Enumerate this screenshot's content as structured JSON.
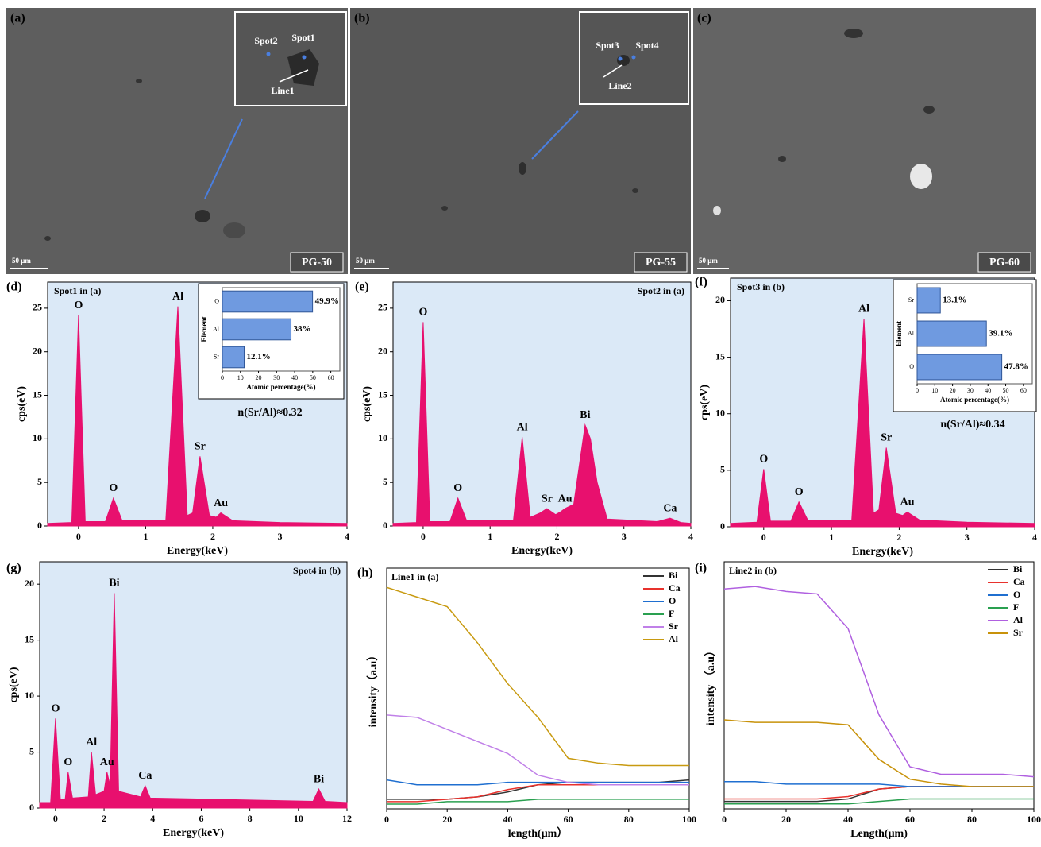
{
  "images": [
    {
      "label": "(a)",
      "scale": "50 μm",
      "sample": "PG-50",
      "inset_labels": [
        "Spot2",
        "Spot1",
        "Line1"
      ]
    },
    {
      "label": "(b)",
      "scale": "50 μm",
      "sample": "PG-55",
      "inset_labels": [
        "Spot3",
        "Spot4",
        "Line2"
      ]
    },
    {
      "label": "(c)",
      "scale": "50 μm",
      "sample": "PG-60"
    }
  ],
  "chart_data": [
    {
      "type": "area",
      "panel": "(d)",
      "subtitle": "Spot1 in (a)",
      "xlabel": "Energy(keV)",
      "ylabel": "cps(eV)",
      "color": "#e8106e",
      "x": [
        -0.46,
        -0.1,
        0,
        0.1,
        0.4,
        0.52,
        0.65,
        1.3,
        1.48,
        1.62,
        1.7,
        1.81,
        1.95,
        2.05,
        2.12,
        2.3,
        3,
        4
      ],
      "values": [
        0.3,
        0.4,
        24.2,
        0.5,
        0.5,
        3.2,
        0.6,
        0.6,
        25.2,
        1.2,
        1.5,
        8,
        1.2,
        1,
        1.5,
        0.6,
        0.4,
        0.3
      ],
      "xlim": [
        -0.46,
        4
      ],
      "xticks": [
        0,
        1,
        2,
        3,
        4
      ],
      "ylim": [
        0,
        28
      ],
      "yticks": [
        0,
        5,
        10,
        15,
        20,
        25
      ],
      "annotations": [
        {
          "text": "O",
          "x": 0
        },
        {
          "text": "O",
          "x": 0.52
        },
        {
          "text": "Al",
          "x": 1.48
        },
        {
          "text": "Sr",
          "x": 1.81
        },
        {
          "text": "Au",
          "x": 2.12
        }
      ],
      "note": "n(Sr/Al)≈0.32",
      "inset": {
        "type": "bar",
        "categories": [
          "O",
          "Al",
          "Sr"
        ],
        "values": [
          49.9,
          38,
          12.1
        ],
        "value_labels": [
          "49.9%",
          "38%",
          "12.1%"
        ],
        "xlim": [
          0,
          65
        ],
        "xticks": [
          0,
          10,
          20,
          30,
          40,
          50,
          60
        ],
        "xlabel": "Atomic percentage(%)",
        "ylabel": "Element",
        "color": "#6f9ae0"
      }
    },
    {
      "type": "area",
      "panel": "(e)",
      "subtitle": "Spot2 in (a)",
      "xlabel": "Energy(keV)",
      "ylabel": "cps(eV)",
      "color": "#e8106e",
      "x": [
        -0.45,
        -0.1,
        0,
        0.1,
        0.4,
        0.52,
        0.65,
        1.35,
        1.48,
        1.6,
        1.75,
        1.85,
        1.98,
        2.05,
        2.12,
        2.25,
        2.42,
        2.5,
        2.6,
        2.75,
        3.5,
        3.69,
        3.85,
        4
      ],
      "values": [
        0.3,
        0.4,
        23.4,
        0.5,
        0.5,
        3.2,
        0.6,
        0.7,
        10.2,
        1,
        1.5,
        2,
        1.3,
        1.6,
        2,
        2.5,
        11.6,
        10,
        5,
        0.8,
        0.5,
        0.9,
        0.4,
        0.3
      ],
      "xlim": [
        -0.45,
        4
      ],
      "xticks": [
        0,
        1,
        2,
        3,
        4
      ],
      "ylim": [
        0,
        28
      ],
      "yticks": [
        0,
        5,
        10,
        15,
        20,
        25
      ],
      "annotations": [
        {
          "text": "O",
          "x": 0
        },
        {
          "text": "O",
          "x": 0.52
        },
        {
          "text": "Al",
          "x": 1.48
        },
        {
          "text": "Sr",
          "x": 1.85
        },
        {
          "text": "Au",
          "x": 2.12
        },
        {
          "text": "Bi",
          "x": 2.42
        },
        {
          "text": "Ca",
          "x": 3.69
        }
      ]
    },
    {
      "type": "area",
      "panel": "(f)",
      "subtitle": "Spot3 in (b)",
      "xlabel": "Energy(keV)",
      "ylabel": "cps(eV)",
      "color": "#e8106e",
      "x": [
        -0.49,
        -0.1,
        0,
        0.1,
        0.4,
        0.52,
        0.65,
        1.3,
        1.48,
        1.62,
        1.7,
        1.81,
        1.95,
        2.05,
        2.12,
        2.3,
        3,
        4
      ],
      "values": [
        0.3,
        0.4,
        5.1,
        0.5,
        0.5,
        2.2,
        0.6,
        0.6,
        18.4,
        1.2,
        1.5,
        7,
        1.2,
        1,
        1.3,
        0.6,
        0.4,
        0.3
      ],
      "xlim": [
        -0.49,
        4
      ],
      "xticks": [
        0,
        1,
        2,
        3,
        4
      ],
      "ylim": [
        0,
        22
      ],
      "yticks": [
        0,
        5,
        10,
        15,
        20
      ],
      "annotations": [
        {
          "text": "O",
          "x": 0
        },
        {
          "text": "O",
          "x": 0.52
        },
        {
          "text": "Al",
          "x": 1.48
        },
        {
          "text": "Sr",
          "x": 1.81
        },
        {
          "text": "Au",
          "x": 2.12
        }
      ],
      "note": "n(Sr/Al)≈0.34",
      "inset": {
        "type": "bar",
        "categories": [
          "Sr",
          "Al",
          "O"
        ],
        "values": [
          13.1,
          39.1,
          47.8
        ],
        "value_labels": [
          "13.1%",
          "39.1%",
          "47.8%"
        ],
        "xlim": [
          0,
          65
        ],
        "xticks": [
          0,
          10,
          20,
          30,
          40,
          50,
          60
        ],
        "xlabel": "Atomic percentage(%)",
        "ylabel": "Element",
        "color": "#6f9ae0"
      }
    },
    {
      "type": "area",
      "panel": "(g)",
      "subtitle": "Spot4 in (b)",
      "xlabel": "Energy(keV)",
      "ylabel": "cps(eV)",
      "color": "#e8106e",
      "x": [
        -0.65,
        -0.2,
        0,
        0.2,
        0.4,
        0.52,
        0.7,
        1.35,
        1.48,
        1.65,
        2,
        2.12,
        2.25,
        2.42,
        2.6,
        3.5,
        3.69,
        3.9,
        10.6,
        10.84,
        11.1,
        12
      ],
      "values": [
        0.5,
        0.5,
        8,
        0.8,
        0.8,
        3.2,
        0.9,
        1,
        5,
        1.2,
        1.5,
        3.2,
        2,
        19.2,
        1.5,
        1,
        2,
        0.9,
        0.6,
        1.7,
        0.6,
        0.5
      ],
      "xlim": [
        -0.65,
        12
      ],
      "xticks": [
        0,
        2,
        4,
        6,
        8,
        10,
        12
      ],
      "ylim": [
        0,
        22
      ],
      "yticks": [
        0,
        5,
        10,
        15,
        20
      ],
      "annotations": [
        {
          "text": "O",
          "x": 0
        },
        {
          "text": "O",
          "x": 0.52
        },
        {
          "text": "Al",
          "x": 1.48
        },
        {
          "text": "Au",
          "x": 2.12
        },
        {
          "text": "Bi",
          "x": 2.42
        },
        {
          "text": "Ca",
          "x": 3.69
        },
        {
          "text": "Bi",
          "x": 10.84
        }
      ]
    },
    {
      "type": "line",
      "panel": "(h)",
      "subtitle": "Line1 in (a)",
      "xlabel": "length(μm）",
      "ylabel": "intensity（a.u）",
      "legend": "upper right",
      "x": [
        0,
        10,
        20,
        30,
        40,
        50,
        60,
        70,
        80,
        90,
        100
      ],
      "xlim": [
        0,
        100
      ],
      "xticks": [
        0,
        20,
        40,
        60,
        80,
        100
      ],
      "ylim": [
        0,
        100
      ],
      "series": [
        {
          "name": "Bi",
          "color": "#333333",
          "values": [
            4,
            4,
            4,
            5,
            7,
            10,
            11,
            11,
            11,
            11,
            12
          ]
        },
        {
          "name": "Ca",
          "color": "#e8322d",
          "values": [
            3,
            3,
            4,
            5,
            8,
            10,
            10,
            10,
            10,
            10,
            10
          ]
        },
        {
          "name": "O",
          "color": "#1f6fd0",
          "values": [
            12,
            10,
            10,
            10,
            11,
            11,
            11,
            11,
            11,
            11,
            11
          ]
        },
        {
          "name": "F",
          "color": "#2aa050",
          "values": [
            2,
            2,
            3,
            3,
            3,
            4,
            4,
            4,
            4,
            4,
            4
          ]
        },
        {
          "name": "Sr",
          "color": "#c080e8",
          "values": [
            39,
            38,
            33,
            28,
            23,
            14,
            11,
            10,
            10,
            10,
            10
          ]
        },
        {
          "name": "Al",
          "color": "#c89a10",
          "values": [
            92,
            88,
            84,
            69,
            52,
            38,
            21,
            19,
            18,
            18,
            18
          ]
        }
      ]
    },
    {
      "type": "line",
      "panel": "(i)",
      "subtitle": "Line2 in (b)",
      "xlabel": "Length(μm)",
      "ylabel": "intensity （a.u）",
      "legend": "upper right",
      "x": [
        0,
        10,
        20,
        30,
        40,
        50,
        60,
        70,
        80,
        90,
        100
      ],
      "xlim": [
        0,
        100
      ],
      "xticks": [
        0,
        20,
        40,
        60,
        80,
        100
      ],
      "ylim": [
        0,
        100
      ],
      "series": [
        {
          "name": "Bi",
          "color": "#333333",
          "values": [
            3,
            3,
            3,
            3,
            4,
            8,
            9,
            9,
            9,
            9,
            9
          ]
        },
        {
          "name": "Ca",
          "color": "#e8322d",
          "values": [
            4,
            4,
            4,
            4,
            5,
            8,
            9,
            9,
            9,
            9,
            9
          ]
        },
        {
          "name": "O",
          "color": "#1f6fd0",
          "values": [
            11,
            11,
            10,
            10,
            10,
            10,
            9,
            9,
            9,
            9,
            9
          ]
        },
        {
          "name": "F",
          "color": "#2aa050",
          "values": [
            2,
            2,
            2,
            2,
            2,
            3,
            4,
            4,
            4,
            4,
            4
          ]
        },
        {
          "name": "Al",
          "color": "#b060e0",
          "values": [
            89,
            90,
            88,
            87,
            73,
            38,
            17,
            14,
            14,
            14,
            13
          ]
        },
        {
          "name": "Sr",
          "color": "#c8920a",
          "values": [
            36,
            35,
            35,
            35,
            34,
            20,
            12,
            10,
            9,
            9,
            9
          ]
        }
      ]
    }
  ]
}
